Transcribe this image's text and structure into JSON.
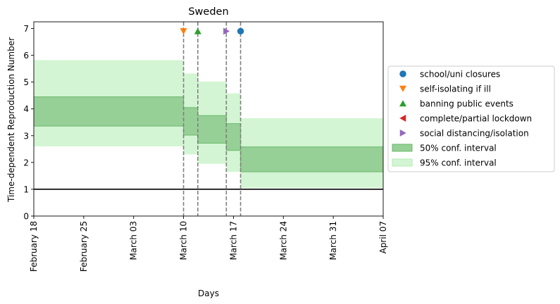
{
  "chart_data": {
    "type": "step-area",
    "title": "Sweden",
    "xlabel": "Days",
    "ylabel": "Time-dependent Reproduction Number",
    "x_ticks": [
      "February 18",
      "February 25",
      "March 03",
      "March 10",
      "March 17",
      "March 24",
      "March 31",
      "April 07"
    ],
    "x_range": [
      "2020-02-18",
      "2020-04-07"
    ],
    "ylim": [
      0,
      7.25
    ],
    "y_ticks": [
      "0",
      "1",
      "2",
      "3",
      "4",
      "5",
      "6",
      "7"
    ],
    "reference_line": {
      "y": 1,
      "color": "#000000"
    },
    "intervals": [
      {
        "start": "2020-02-18",
        "end": "2020-03-10",
        "ci50": [
          3.36,
          4.45
        ],
        "ci95": [
          2.6,
          5.82
        ]
      },
      {
        "start": "2020-03-10",
        "end": "2020-03-12",
        "ci50": [
          3.02,
          4.05
        ],
        "ci95": [
          2.3,
          5.32
        ]
      },
      {
        "start": "2020-03-12",
        "end": "2020-03-16",
        "ci50": [
          2.72,
          3.75
        ],
        "ci95": [
          1.95,
          5.02
        ]
      },
      {
        "start": "2020-03-16",
        "end": "2020-03-18",
        "ci50": [
          2.45,
          3.45
        ],
        "ci95": [
          1.65,
          4.58
        ]
      },
      {
        "start": "2020-03-18",
        "end": "2020-04-07",
        "ci50": [
          1.65,
          2.58
        ],
        "ci95": [
          1.05,
          3.65
        ]
      }
    ],
    "interventions": [
      {
        "name": "school/uni closures",
        "date": "2020-03-18",
        "marker": "circle",
        "color": "#1f77b4"
      },
      {
        "name": "self-isolating if ill",
        "date": "2020-03-10",
        "marker": "triangle-down",
        "color": "#ff7f0e"
      },
      {
        "name": "banning public events",
        "date": "2020-03-12",
        "marker": "triangle-up",
        "color": "#2ca02c"
      },
      {
        "name": "complete/partial lockdown",
        "date": null,
        "marker": "triangle-left",
        "color": "#d62728"
      },
      {
        "name": "social distancing/isolation",
        "date": "2020-03-16",
        "marker": "triangle-right",
        "color": "#9467bd"
      }
    ],
    "marker_y": 6.9,
    "legend": {
      "placement": "right",
      "entries": [
        {
          "label": "school/uni closures",
          "kind": "marker",
          "marker": "circle",
          "color": "#1f77b4"
        },
        {
          "label": "self-isolating if ill",
          "kind": "marker",
          "marker": "triangle-down",
          "color": "#ff7f0e"
        },
        {
          "label": "banning public events",
          "kind": "marker",
          "marker": "triangle-up",
          "color": "#2ca02c"
        },
        {
          "label": "complete/partial lockdown",
          "kind": "marker",
          "marker": "triangle-left",
          "color": "#d62728"
        },
        {
          "label": "social distancing/isolation",
          "kind": "marker",
          "marker": "triangle-right",
          "color": "#9467bd"
        },
        {
          "label": "50% conf. interval",
          "kind": "patch",
          "color": "#96d096",
          "edge": "#6bb86b"
        },
        {
          "label": "95% conf. interval",
          "kind": "patch",
          "color": "#d3f5d3",
          "edge": "#b4eab4"
        }
      ]
    },
    "colors": {
      "ci50": "#96d096",
      "ci50_edge": "#6bb86b",
      "ci95": "#d3f5d3",
      "dashed_line": "#808080"
    },
    "grid": false
  }
}
